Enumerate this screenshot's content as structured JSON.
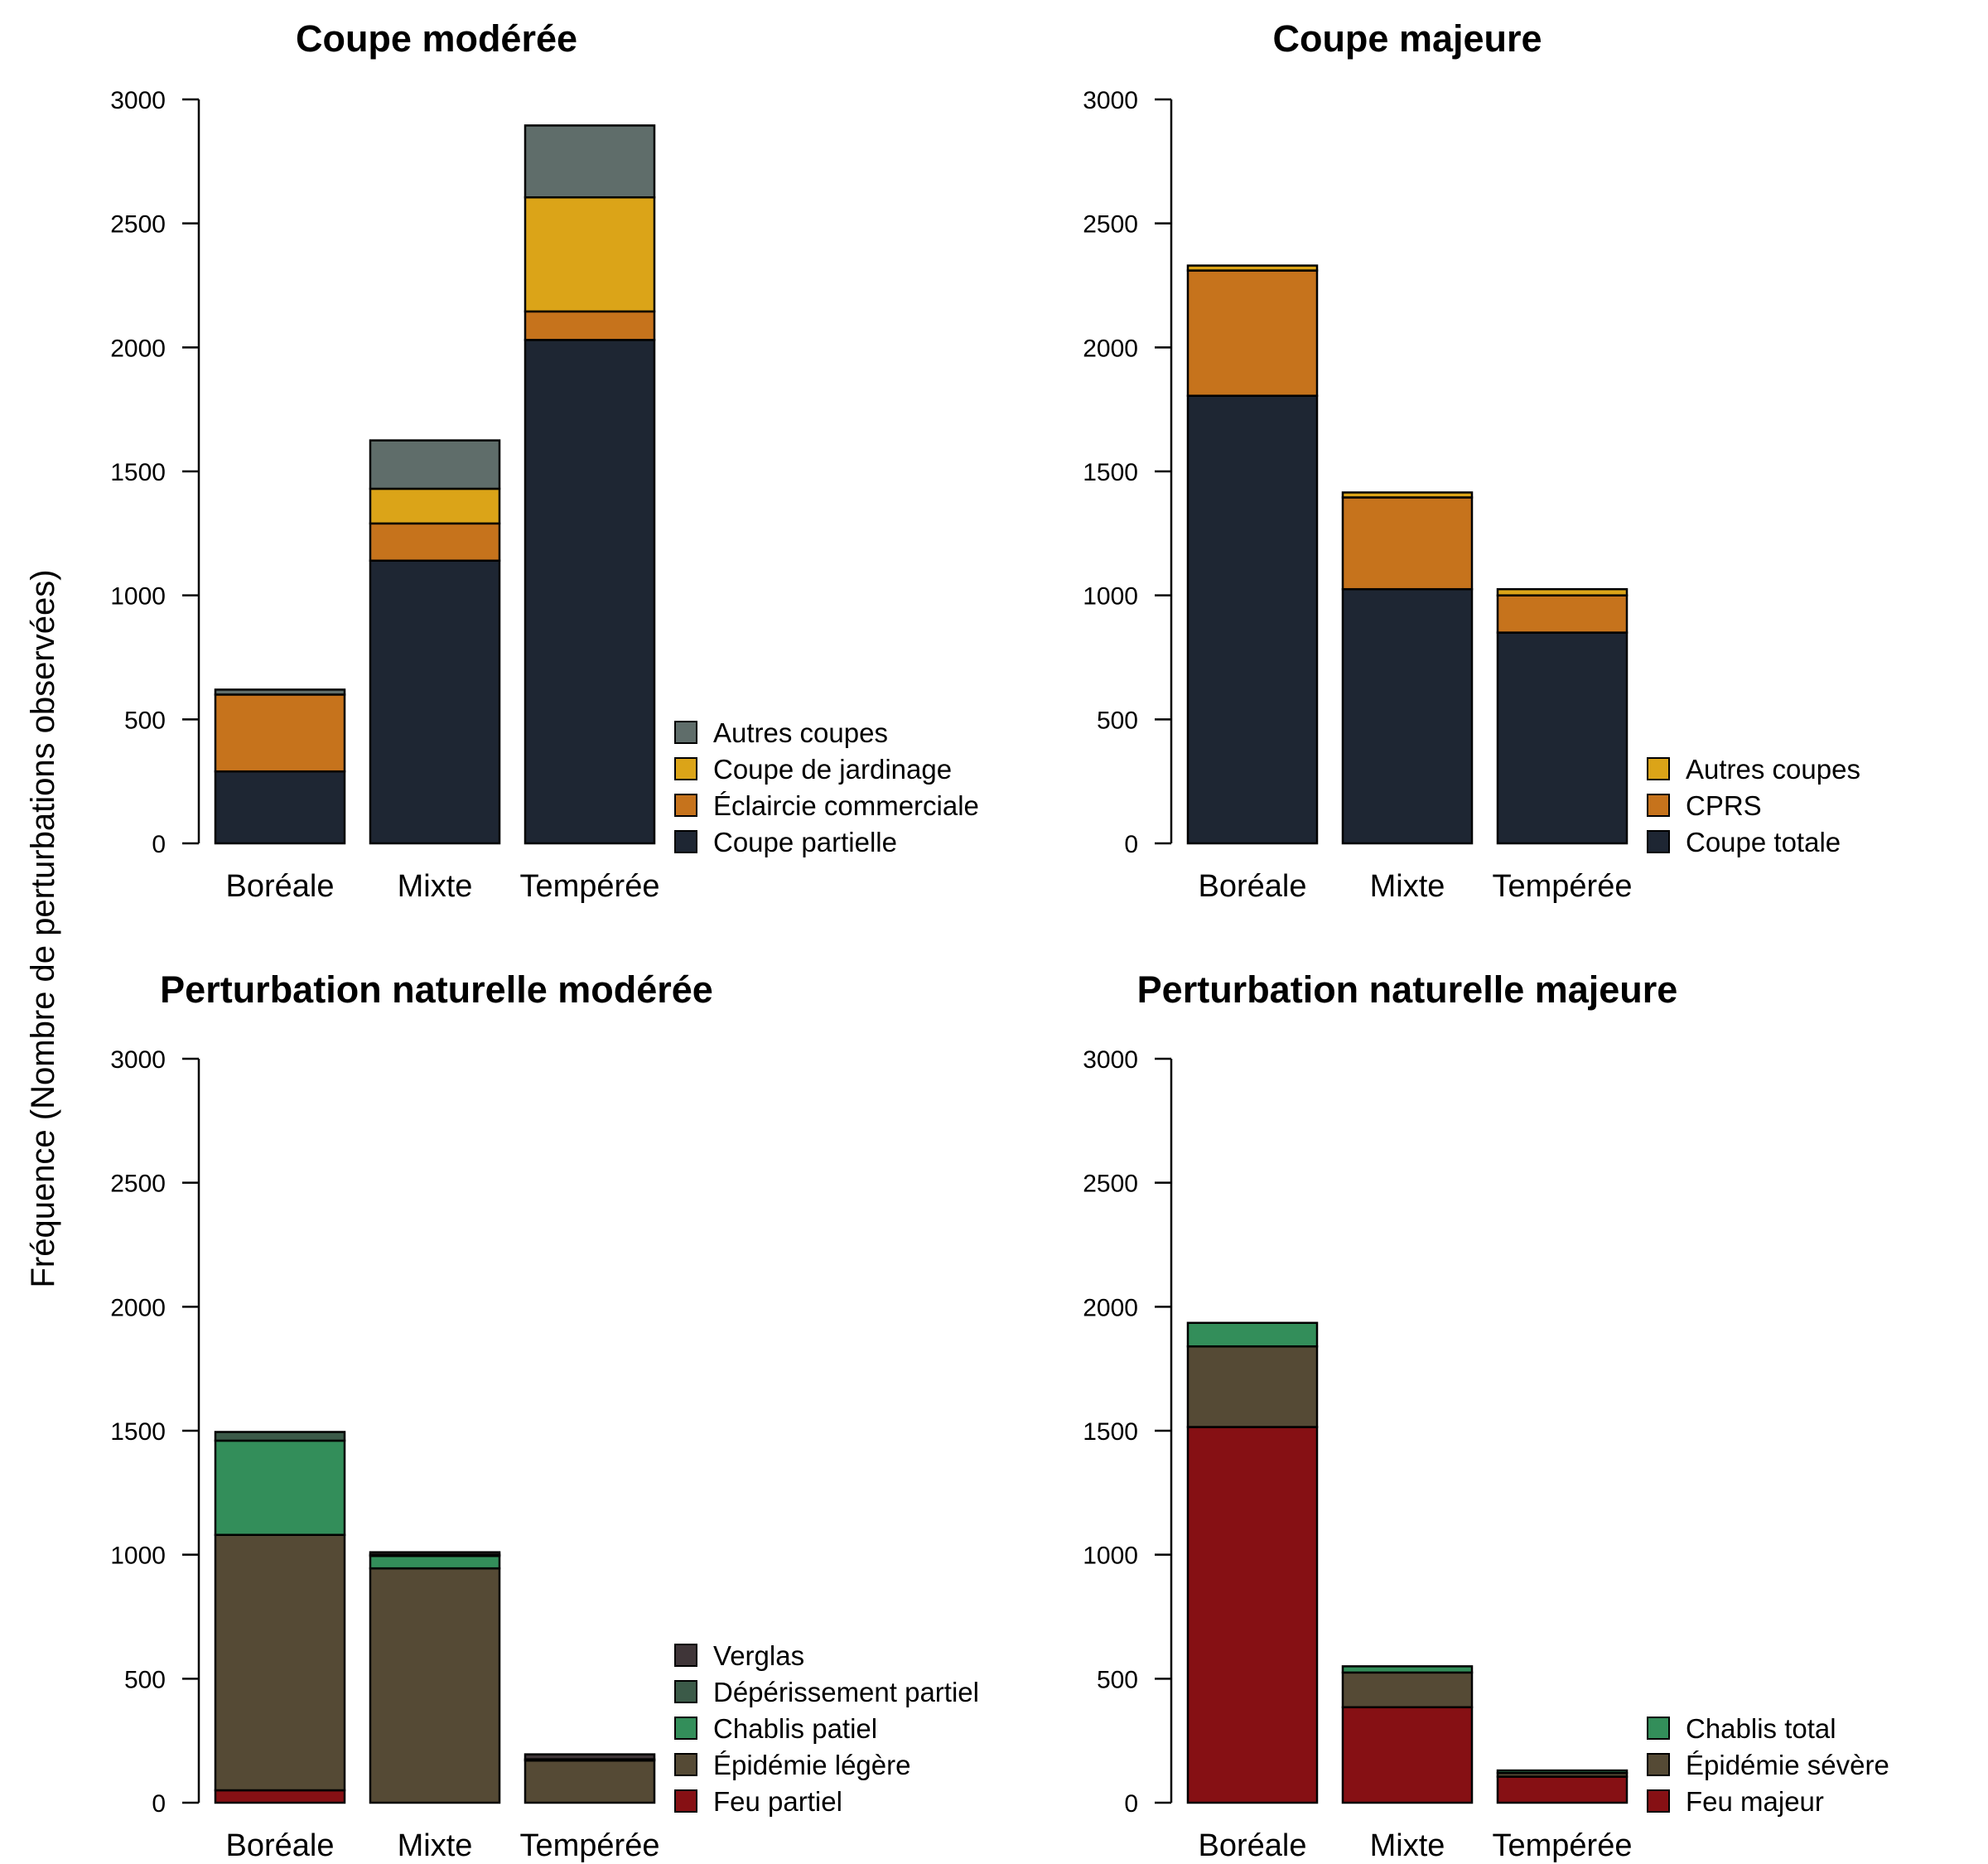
{
  "figure": {
    "ylabel": "Fréquence (Nombre de perturbations observées)"
  },
  "chart_data": [
    {
      "type": "bar",
      "stacked": true,
      "title": "Coupe modérée",
      "categories": [
        "Boréale",
        "Mixte",
        "Tempérée"
      ],
      "ylim": [
        0,
        3000
      ],
      "yticks": [
        0,
        500,
        1000,
        1500,
        2000,
        2500,
        3000
      ],
      "legend_position": "bottom-right",
      "series": [
        {
          "name": "Coupe partielle",
          "color": "#1e2633",
          "values": [
            290,
            1140,
            2030
          ]
        },
        {
          "name": "Éclaircie commerciale",
          "color": "#c6731c",
          "values": [
            310,
            150,
            115
          ]
        },
        {
          "name": "Coupe de jardinage",
          "color": "#dba418",
          "values": [
            0,
            140,
            460
          ]
        },
        {
          "name": "Autres coupes",
          "color": "#5f6d6a",
          "values": [
            20,
            195,
            290
          ]
        }
      ]
    },
    {
      "type": "bar",
      "stacked": true,
      "title": "Coupe majeure",
      "categories": [
        "Boréale",
        "Mixte",
        "Tempérée"
      ],
      "ylim": [
        0,
        3000
      ],
      "yticks": [
        0,
        500,
        1000,
        1500,
        2000,
        2500,
        3000
      ],
      "legend_position": "bottom-right",
      "series": [
        {
          "name": "Coupe totale",
          "color": "#1e2633",
          "values": [
            1805,
            1025,
            850
          ]
        },
        {
          "name": "CPRS",
          "color": "#c6731c",
          "values": [
            505,
            370,
            150
          ]
        },
        {
          "name": "Autres coupes",
          "color": "#dba418",
          "values": [
            20,
            20,
            25
          ]
        }
      ]
    },
    {
      "type": "bar",
      "stacked": true,
      "title": "Perturbation naturelle modérée",
      "categories": [
        "Boréale",
        "Mixte",
        "Tempérée"
      ],
      "ylim": [
        0,
        3000
      ],
      "yticks": [
        0,
        500,
        1000,
        1500,
        2000,
        2500,
        3000
      ],
      "legend_position": "bottom-right",
      "series": [
        {
          "name": "Feu partiel",
          "color": "#861014",
          "values": [
            50,
            0,
            0
          ]
        },
        {
          "name": "Épidémie légère",
          "color": "#554a35",
          "values": [
            1030,
            945,
            170
          ]
        },
        {
          "name": "Chablis patiel",
          "color": "#338e5a",
          "values": [
            380,
            50,
            0
          ]
        },
        {
          "name": "Dépérissement partiel",
          "color": "#3b5a48",
          "values": [
            35,
            5,
            5
          ]
        },
        {
          "name": "Verglas",
          "color": "#3f3538",
          "values": [
            0,
            10,
            20
          ]
        }
      ]
    },
    {
      "type": "bar",
      "stacked": true,
      "title": "Perturbation naturelle majeure",
      "categories": [
        "Boréale",
        "Mixte",
        "Tempérée"
      ],
      "ylim": [
        0,
        3000
      ],
      "yticks": [
        0,
        500,
        1000,
        1500,
        2000,
        2500,
        3000
      ],
      "legend_position": "bottom-right",
      "series": [
        {
          "name": "Feu majeur",
          "color": "#861014",
          "values": [
            1515,
            385,
            105
          ]
        },
        {
          "name": "Épidémie sévère",
          "color": "#554a35",
          "values": [
            325,
            140,
            15
          ]
        },
        {
          "name": "Chablis total",
          "color": "#338e5a",
          "values": [
            95,
            25,
            10
          ]
        }
      ]
    }
  ]
}
